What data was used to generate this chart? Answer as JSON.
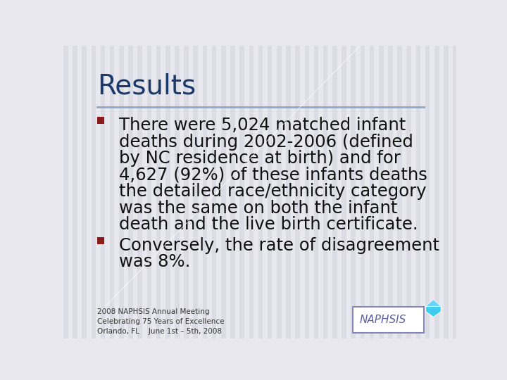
{
  "title": "Results",
  "title_color": "#1B3A6B",
  "title_fontsize": 28,
  "separator_color": "#8FA8C8",
  "background_color": "#E8E8EE",
  "stripe_color": "#DCDCE4",
  "bullet_color": "#8B1A1A",
  "body_color": "#111111",
  "body_fontsize": 17.5,
  "bullet1_lines": [
    "There were 5,024 matched infant",
    "deaths during 2002-2006 (defined",
    "by NC residence at birth) and for",
    "4,627 (92%) of these infants deaths",
    "the detailed race/ethnicity category",
    "was the same on both the infant",
    "death and the live birth certificate."
  ],
  "bullet2_lines": [
    "Conversely, the rate of disagreement",
    "was 8%."
  ],
  "footer_line1": "2008 NAPHSIS Annual Meeting",
  "footer_line2": "Celebrating 75 Years of Excellence",
  "footer_line3": "Orlando, FL    June 1st – 5th, 2008",
  "footer_fontsize": 7.5,
  "logo_color": "#6060A0",
  "logo_border_color": "#8888BB",
  "diamond_color": "#40CCEE"
}
